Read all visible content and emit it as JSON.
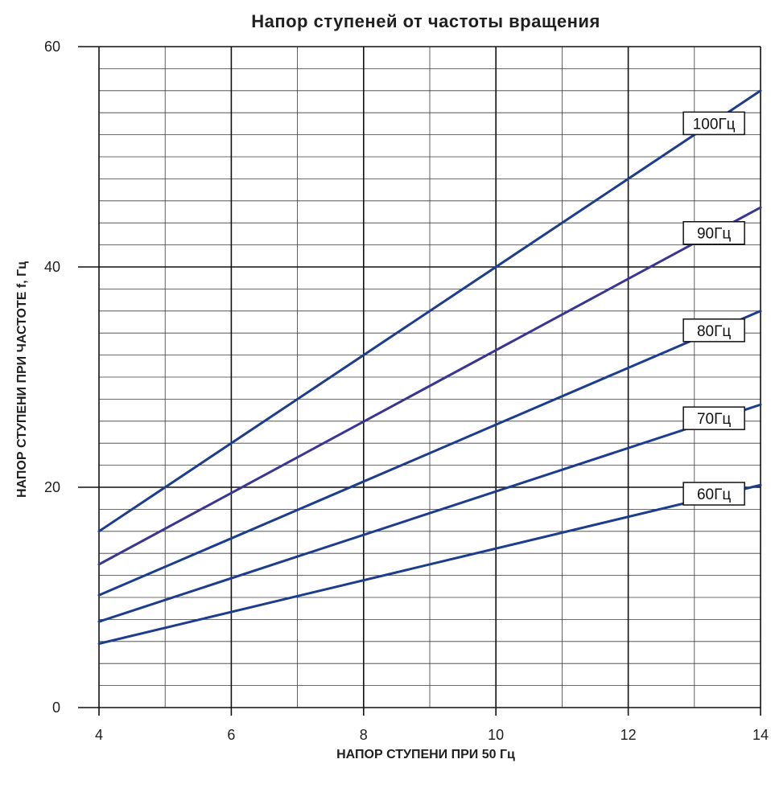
{
  "chart_data": {
    "type": "line",
    "title": "Напор ступеней от частоты вращения",
    "xlabel": "НАПОР СТУПЕНИ ПРИ 50 Гц",
    "ylabel": "НАПОР СТУПЕНИ ПРИ ЧАСТОТЕ f, Гц",
    "xlim": [
      4,
      14
    ],
    "ylim": [
      0,
      60
    ],
    "x_ticks": [
      "4",
      "6",
      "8",
      "10",
      "12",
      "14"
    ],
    "y_ticks": [
      "0",
      "20",
      "40",
      "60"
    ],
    "x_minor_step": 1,
    "y_minor_step": 2,
    "grid": true,
    "x": [
      4,
      14
    ],
    "series": [
      {
        "name": "100Гц",
        "values": [
          16,
          56
        ],
        "color": "#1c3d8f"
      },
      {
        "name": "90Гц",
        "values": [
          13,
          45.4
        ],
        "color": "#3a3592"
      },
      {
        "name": "80Гц",
        "values": [
          10.2,
          36
        ],
        "color": "#1c3d8f"
      },
      {
        "name": "70Гц",
        "values": [
          7.8,
          27.5
        ],
        "color": "#1c3d8f"
      },
      {
        "name": "60Гц",
        "values": [
          5.8,
          20.2
        ],
        "color": "#1c3d8f"
      }
    ]
  }
}
